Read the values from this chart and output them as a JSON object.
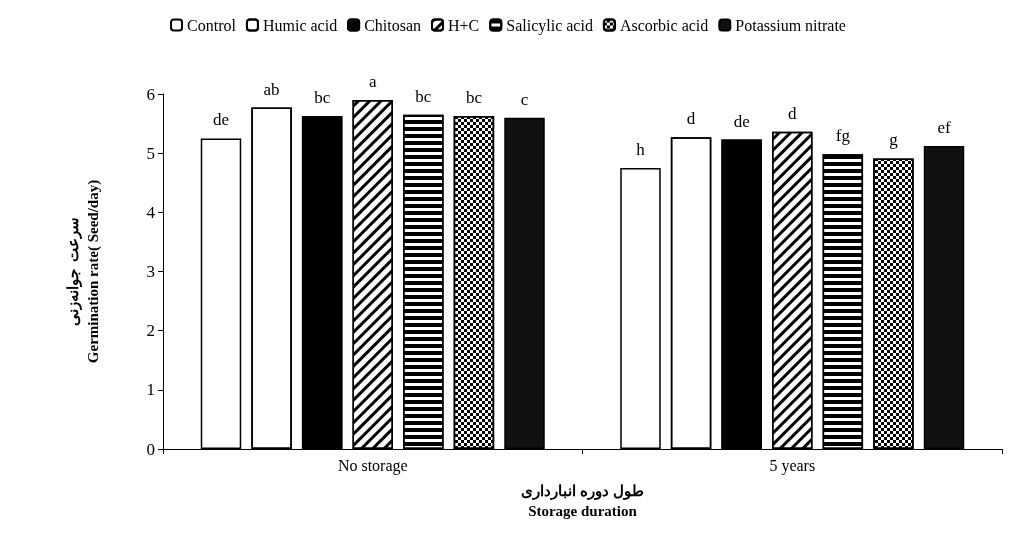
{
  "chart_data": {
    "type": "bar",
    "xlabel": "طول دوره انبارداری\nStorage duration",
    "ylabel": "سرعت  جوانه‌زنی\nGermination rate( Seed/day)",
    "categories": [
      "No storage",
      "5 years"
    ],
    "ylim": [
      0,
      6
    ],
    "yticks": [
      0,
      1,
      2,
      3,
      4,
      5,
      6
    ],
    "grid": false,
    "legend": "top",
    "series": [
      {
        "name": "Control",
        "color": "#ffffff",
        "values": [
          5.25,
          4.75
        ],
        "value_labels": [
          "de",
          "h"
        ]
      },
      {
        "name": "Humic acid",
        "color": "#ffffff",
        "values": [
          5.77,
          5.27
        ],
        "value_labels": [
          "ab",
          "d"
        ]
      },
      {
        "name": "Chitosan",
        "color": "#000000",
        "values": [
          5.63,
          5.23
        ],
        "value_labels": [
          "bc",
          "de"
        ]
      },
      {
        "name": "H+C",
        "color": "#ffffff",
        "values": [
          5.9,
          5.36
        ],
        "value_labels": [
          "a",
          "d"
        ]
      },
      {
        "name": "Salicylic acid",
        "color": "#ffffff",
        "values": [
          5.65,
          4.98
        ],
        "value_labels": [
          "bc",
          "fg"
        ]
      },
      {
        "name": "Ascorbic acid",
        "color": "#ffffff",
        "values": [
          5.63,
          4.91
        ],
        "value_labels": [
          "bc",
          "g"
        ]
      },
      {
        "name": "Potassium nitrate",
        "color": "#111111",
        "values": [
          5.6,
          5.12
        ],
        "value_labels": [
          "c",
          "ef"
        ]
      }
    ]
  }
}
